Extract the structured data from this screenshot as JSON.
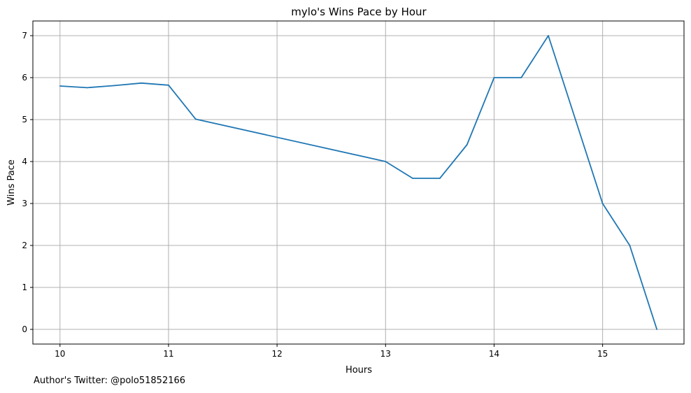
{
  "chart_data": {
    "type": "line",
    "title": "mylo's Wins Pace by Hour",
    "xlabel": "Hours",
    "ylabel": "Wins Pace",
    "xlim": [
      9.75,
      15.75
    ],
    "ylim": [
      -0.35,
      7.35
    ],
    "xticks": [
      10,
      11,
      12,
      13,
      14,
      15
    ],
    "yticks": [
      0,
      1,
      2,
      3,
      4,
      5,
      6,
      7
    ],
    "grid": true,
    "line_color": "#1f77b4",
    "grid_color": "#b0b0b0",
    "series": [
      {
        "x": [
          10.0,
          10.25,
          10.5,
          10.75,
          11.0,
          11.25,
          13.0,
          13.25,
          13.5,
          13.75,
          14.0,
          14.25,
          14.5,
          14.75,
          15.0,
          15.25,
          15.5
        ],
        "values": [
          5.8,
          5.76,
          5.81,
          5.87,
          5.82,
          5.01,
          4.0,
          3.6,
          3.6,
          4.4,
          6.0,
          6.0,
          7.0,
          5.0,
          3.0,
          2.0,
          0.0
        ]
      }
    ]
  },
  "footer": {
    "credit": "Author's Twitter: @polo51852166"
  }
}
